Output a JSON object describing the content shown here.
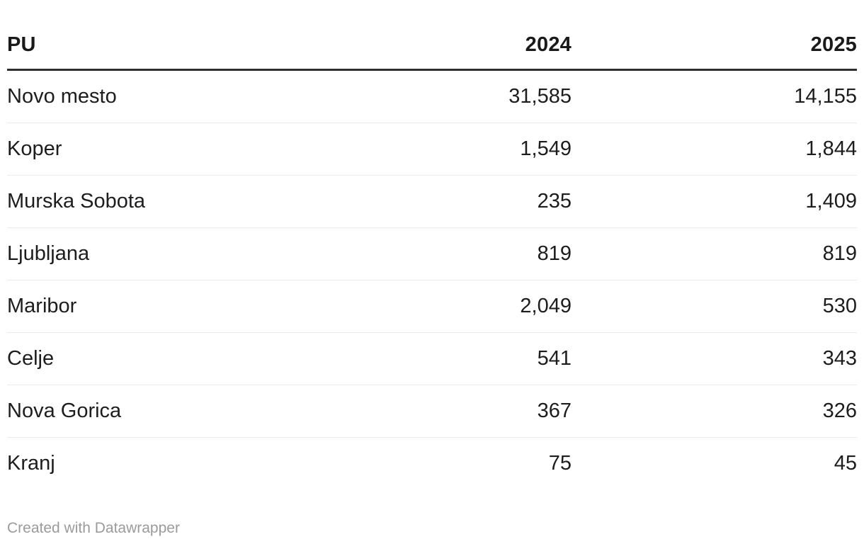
{
  "table": {
    "columns": [
      "PU",
      "2024",
      "2025"
    ],
    "rows": [
      {
        "cells": [
          "Novo mesto",
          "31,585",
          "14,155"
        ]
      },
      {
        "cells": [
          "Koper",
          "1,549",
          "1,844"
        ]
      },
      {
        "cells": [
          "Murska Sobota",
          "235",
          "1,409"
        ]
      },
      {
        "cells": [
          "Ljubljana",
          "819",
          "819"
        ]
      },
      {
        "cells": [
          "Maribor",
          "2,049",
          "530"
        ]
      },
      {
        "cells": [
          "Celje",
          "541",
          "343"
        ]
      },
      {
        "cells": [
          "Nova Gorica",
          "367",
          "326"
        ]
      },
      {
        "cells": [
          "Kranj",
          "75",
          "45"
        ]
      }
    ]
  },
  "footer": {
    "credit": "Created with Datawrapper"
  },
  "colors": {
    "background": "#ffffff",
    "header_text": "#1a1a1a",
    "header_border": "#2e2e2e",
    "body_text": "#1d1d1f",
    "row_divider": "#ebebeb",
    "footer_text": "#9b9b9b"
  },
  "chart_data": {
    "type": "table",
    "title": "",
    "columns": [
      "PU",
      "2024",
      "2025"
    ],
    "categories": [
      "Novo mesto",
      "Koper",
      "Murska Sobota",
      "Ljubljana",
      "Maribor",
      "Celje",
      "Nova Gorica",
      "Kranj"
    ],
    "series": [
      {
        "name": "2024",
        "values": [
          31585,
          1549,
          235,
          819,
          2049,
          541,
          367,
          75
        ]
      },
      {
        "name": "2025",
        "values": [
          14155,
          1844,
          1409,
          819,
          530,
          343,
          326,
          45
        ]
      }
    ],
    "layout_hints": {
      "number_alignment": "right",
      "grid": "horizontal-row-dividers",
      "header_rule": "thick-dark",
      "legend": "none"
    }
  }
}
